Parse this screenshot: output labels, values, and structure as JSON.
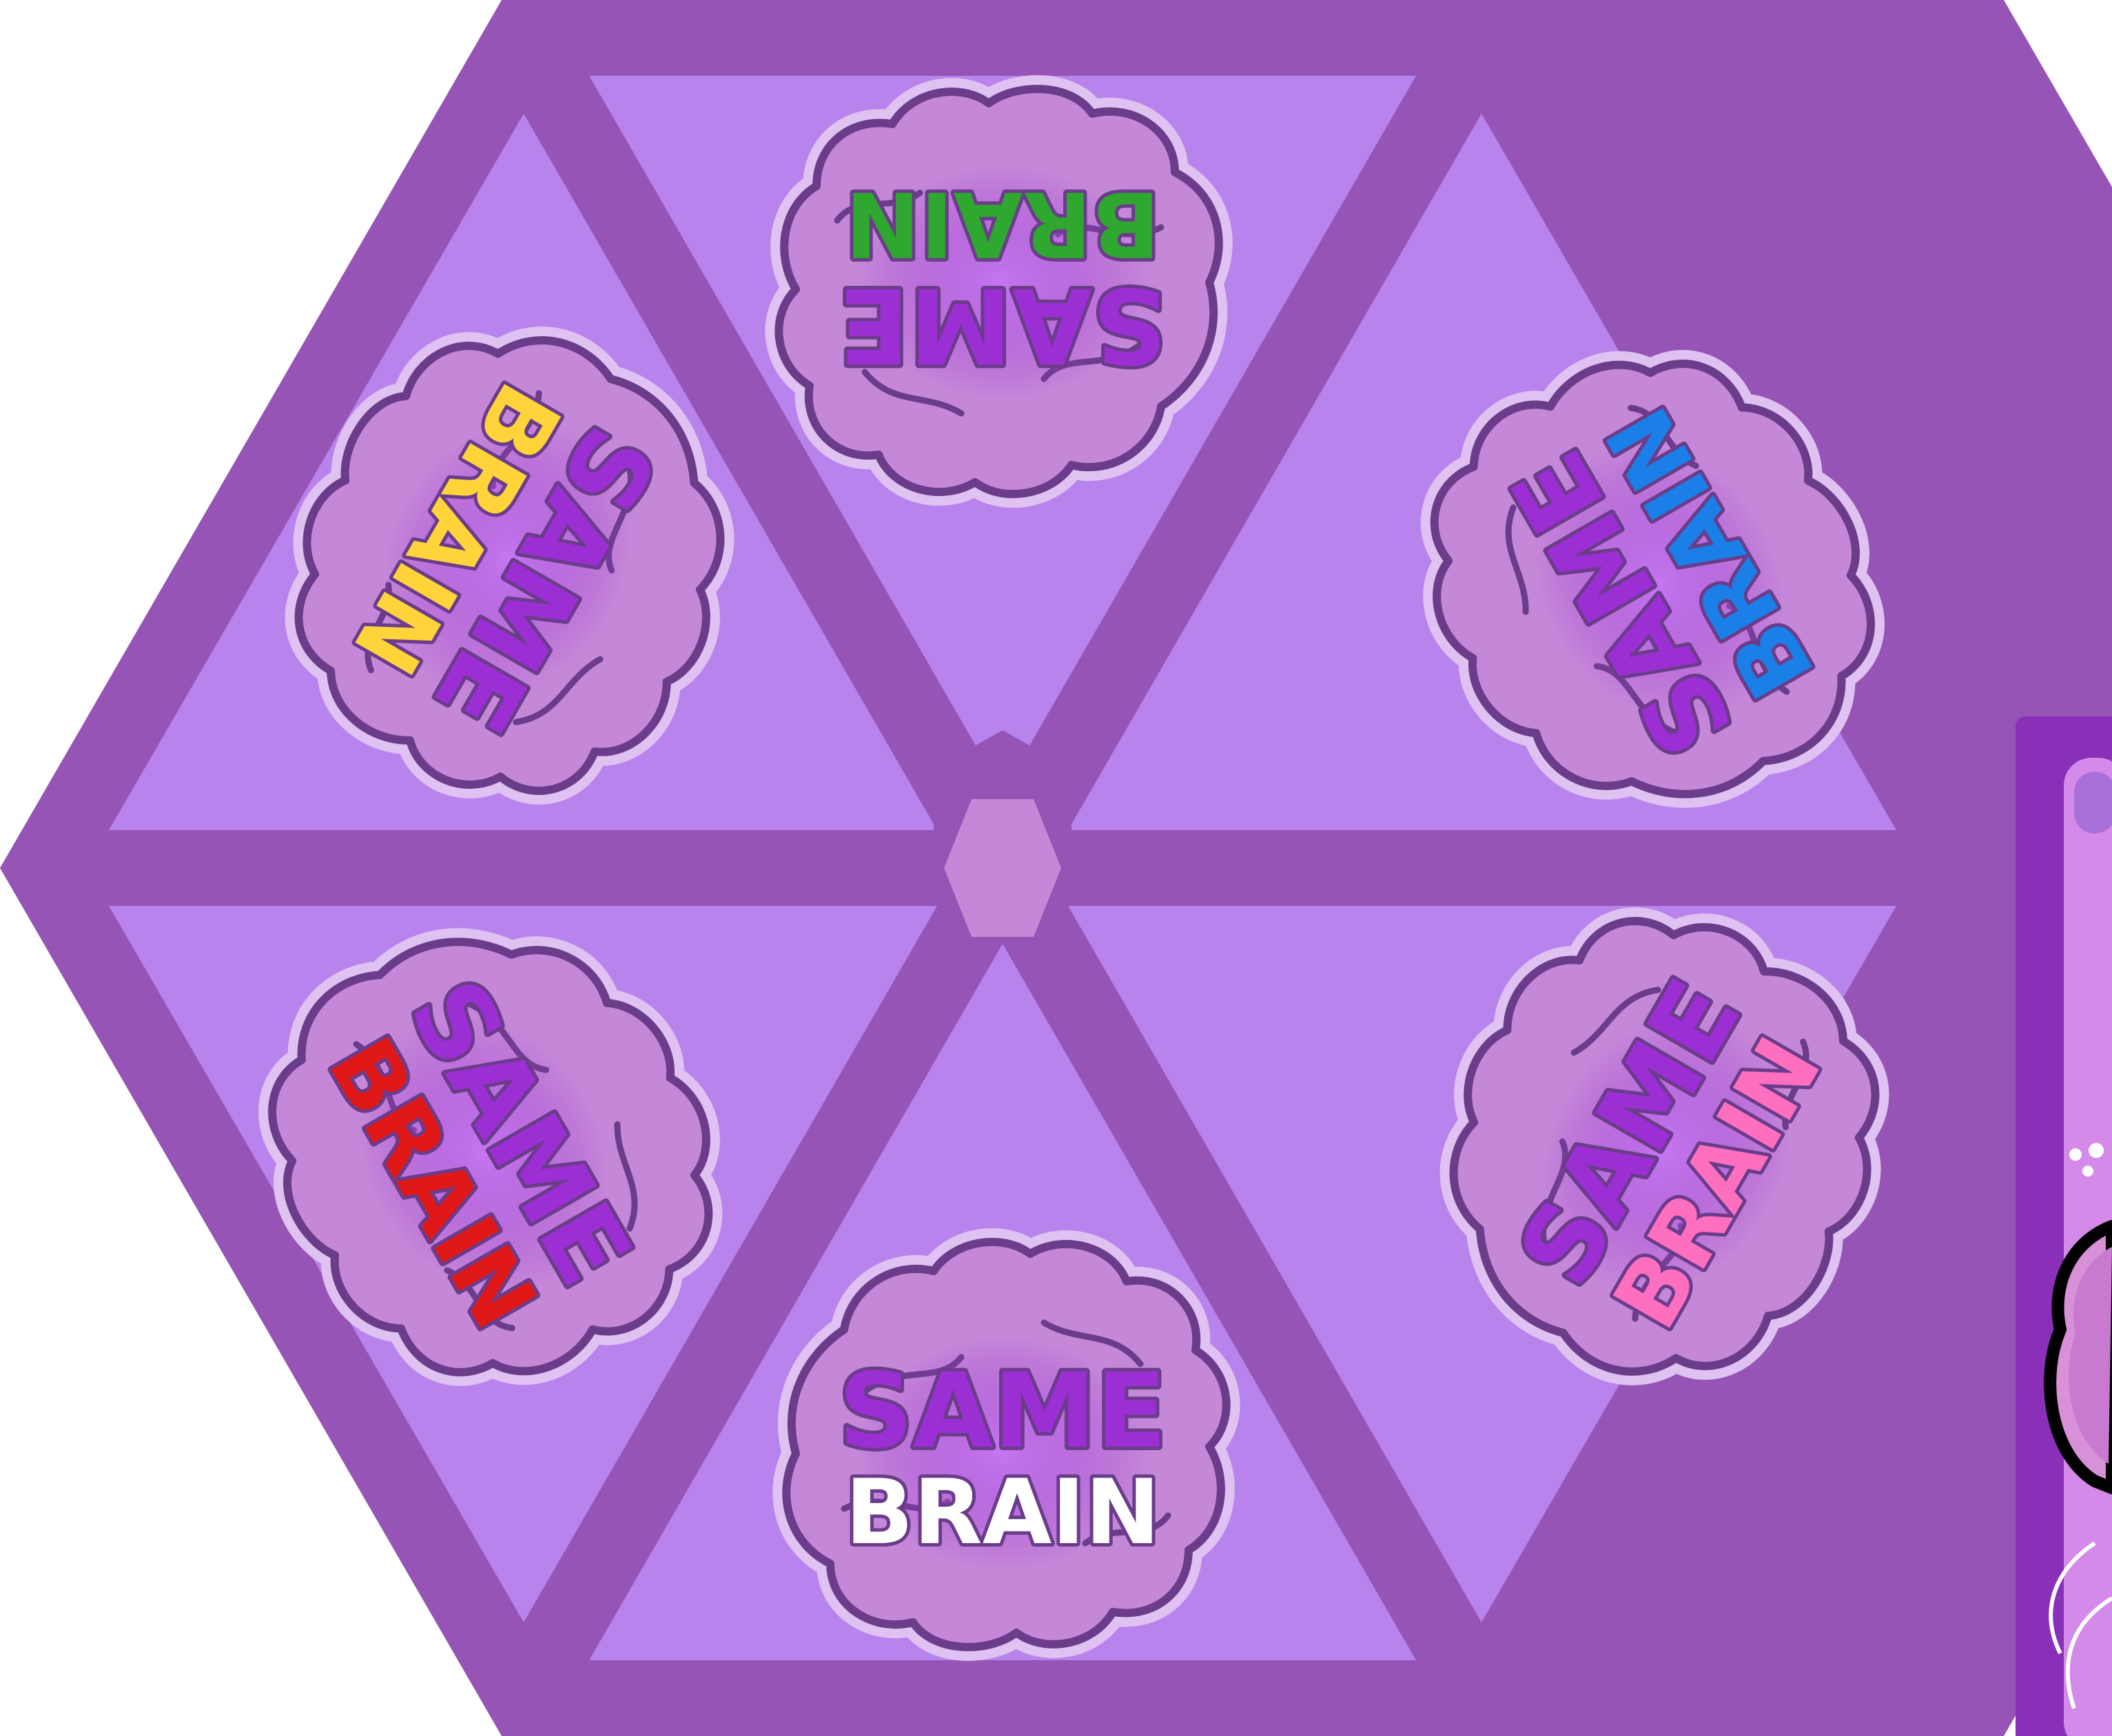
{
  "board": {
    "tiles": [
      {
        "id": "top",
        "word_top": "SAME",
        "word_bottom": "BRAIN",
        "accent": "#2ea82e",
        "rotation_deg": 180
      },
      {
        "id": "upper-right",
        "word_top": "SAME",
        "word_bottom": "BRAIN",
        "accent": "#1a7fe6",
        "rotation_deg": 240
      },
      {
        "id": "lower-right",
        "word_top": "SAME",
        "word_bottom": "BRAIN",
        "accent": "#ff6fc0",
        "rotation_deg": 300
      },
      {
        "id": "bottom",
        "word_top": "SAME",
        "word_bottom": "BRAIN",
        "accent": "#ffffff",
        "rotation_deg": 0
      },
      {
        "id": "lower-left",
        "word_top": "SAME",
        "word_bottom": "BRAIN",
        "accent": "#e01818",
        "rotation_deg": 60
      },
      {
        "id": "upper-left",
        "word_top": "SAME",
        "word_bottom": "BRAIN",
        "accent": "#ffd43a",
        "rotation_deg": 120
      }
    ]
  },
  "colors": {
    "frame": "#9654b6",
    "panel": "#b883ec",
    "center_hub": "#c687d8",
    "brain_fill": "#c588d8",
    "brain_outline": "#6a3c8a",
    "brain_halo": "#dfc1f2",
    "word_main": "#9b2fd3",
    "card_edge": "#8a2fb8"
  },
  "icons": {
    "brain": "brain-icon",
    "hub": "hexagon-icon"
  }
}
